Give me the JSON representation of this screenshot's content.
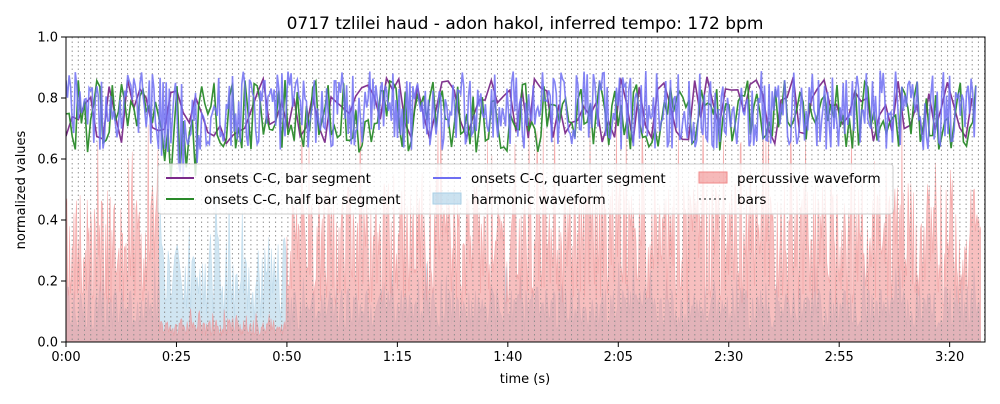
{
  "chart_data": {
    "type": "line",
    "title": "0717 tzlilei haud - adon hakol, inferred tempo: 172 bpm",
    "xlabel": "time (s)",
    "ylabel": "normalized values",
    "xlim": [
      0,
      208
    ],
    "ylim": [
      0.0,
      1.0
    ],
    "x_ticks": [
      {
        "value": 0,
        "label": "0:00"
      },
      {
        "value": 25,
        "label": "0:25"
      },
      {
        "value": 50,
        "label": "0:50"
      },
      {
        "value": 75,
        "label": "1:15"
      },
      {
        "value": 100,
        "label": "1:40"
      },
      {
        "value": 125,
        "label": "2:05"
      },
      {
        "value": 150,
        "label": "2:30"
      },
      {
        "value": 175,
        "label": "2:55"
      },
      {
        "value": 200,
        "label": "3:20"
      }
    ],
    "y_ticks": [
      {
        "value": 0.0,
        "label": "0.0"
      },
      {
        "value": 0.2,
        "label": "0.2"
      },
      {
        "value": 0.4,
        "label": "0.4"
      },
      {
        "value": 0.6,
        "label": "0.6"
      },
      {
        "value": 0.8,
        "label": "0.8"
      },
      {
        "value": 1.0,
        "label": "1.0"
      }
    ],
    "legend_position": "center",
    "bar_interval_s": 1.3953,
    "series": [
      {
        "name": "onsets C-C, bar segment",
        "kind": "line",
        "color": "#7b2a8a",
        "mean": 0.76,
        "spread": 0.11,
        "step": 1.395,
        "x_end": 206
      },
      {
        "name": "onsets C-C, half bar segment",
        "kind": "line",
        "color": "#2a8a2a",
        "mean": 0.74,
        "spread": 0.12,
        "step": 0.698,
        "x_end": 206
      },
      {
        "name": "onsets C-C, quarter segment",
        "kind": "line",
        "color": "#6f6ff2",
        "mean": 0.76,
        "spread": 0.13,
        "step": 0.349,
        "x_end": 206
      },
      {
        "name": "harmonic waveform",
        "kind": "area",
        "color": "#a9cfe6",
        "mean": 0.18,
        "spread": 0.12,
        "step": 0.3,
        "x_end": 207
      },
      {
        "name": "percussive waveform",
        "kind": "area",
        "color": "#f08a8a",
        "mean": 0.32,
        "spread": 0.2,
        "step": 0.2,
        "x_end": 207
      },
      {
        "name": "bars",
        "kind": "vlines",
        "color": "#888888"
      }
    ]
  }
}
